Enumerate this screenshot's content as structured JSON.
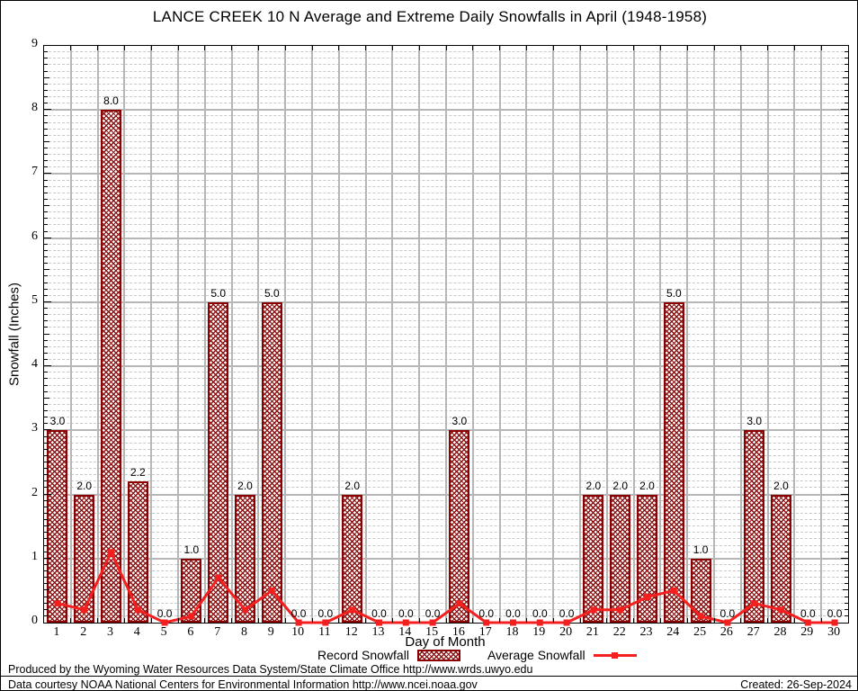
{
  "title": "LANCE CREEK 10 N Average and Extreme Daily Snowfalls in April (1948-1958)",
  "chart_data": {
    "type": "bar",
    "categories": [
      "1",
      "2",
      "3",
      "4",
      "5",
      "6",
      "7",
      "8",
      "9",
      "10",
      "11",
      "12",
      "13",
      "14",
      "15",
      "16",
      "17",
      "18",
      "19",
      "20",
      "21",
      "22",
      "23",
      "24",
      "25",
      "26",
      "27",
      "28",
      "29",
      "30"
    ],
    "series": [
      {
        "name": "Record Snowfall",
        "type": "bar",
        "values": [
          3.0,
          2.0,
          8.0,
          2.2,
          0.0,
          1.0,
          5.0,
          2.0,
          5.0,
          0.0,
          0.0,
          2.0,
          0.0,
          0.0,
          0.0,
          3.0,
          0.0,
          0.0,
          0.0,
          0.0,
          2.0,
          2.0,
          2.0,
          5.0,
          1.0,
          0.0,
          3.0,
          2.0,
          0.0,
          0.0
        ]
      },
      {
        "name": "Average Snowfall",
        "type": "line",
        "values": [
          0.3,
          0.2,
          1.1,
          0.2,
          0.0,
          0.1,
          0.7,
          0.2,
          0.5,
          0.0,
          0.0,
          0.2,
          0.0,
          0.0,
          0.0,
          0.3,
          0.0,
          0.0,
          0.0,
          0.0,
          0.2,
          0.2,
          0.4,
          0.5,
          0.1,
          0.0,
          0.3,
          0.2,
          0.0,
          0.0
        ]
      }
    ],
    "title": "LANCE CREEK 10 N Average and Extreme Daily Snowfalls in April (1948-1958)",
    "xlabel": "Day of Month",
    "ylabel": "Snowfall (Inches)",
    "ylim": [
      0,
      9
    ],
    "y_major_step": 1,
    "y_minor_step": 0.1,
    "y_tick_labels": [
      "0",
      "1",
      "2",
      "3",
      "4",
      "5",
      "6",
      "7",
      "8",
      "9"
    ],
    "grid": true,
    "legend_position": "bottom",
    "bar_value_labels": true
  },
  "legend": {
    "record_label": "Record Snowfall",
    "average_label": "Average Snowfall"
  },
  "footer": {
    "line1": "Produced by the Wyoming Water Resources Data System/State Climate Office http://www.wrds.uwyo.edu",
    "line2": "Data courtesy NOAA National Centers for Environmental Information http://www.ncei.noaa.gov",
    "created": "Created: 26-Sep-2024"
  },
  "colors": {
    "bar_fill": "#8b1212",
    "bar_border": "#8b0000",
    "line": "#f42020",
    "grid_major": "#b6b6b6",
    "grid_minor": "#c9c9c9",
    "axis": "#000000"
  }
}
